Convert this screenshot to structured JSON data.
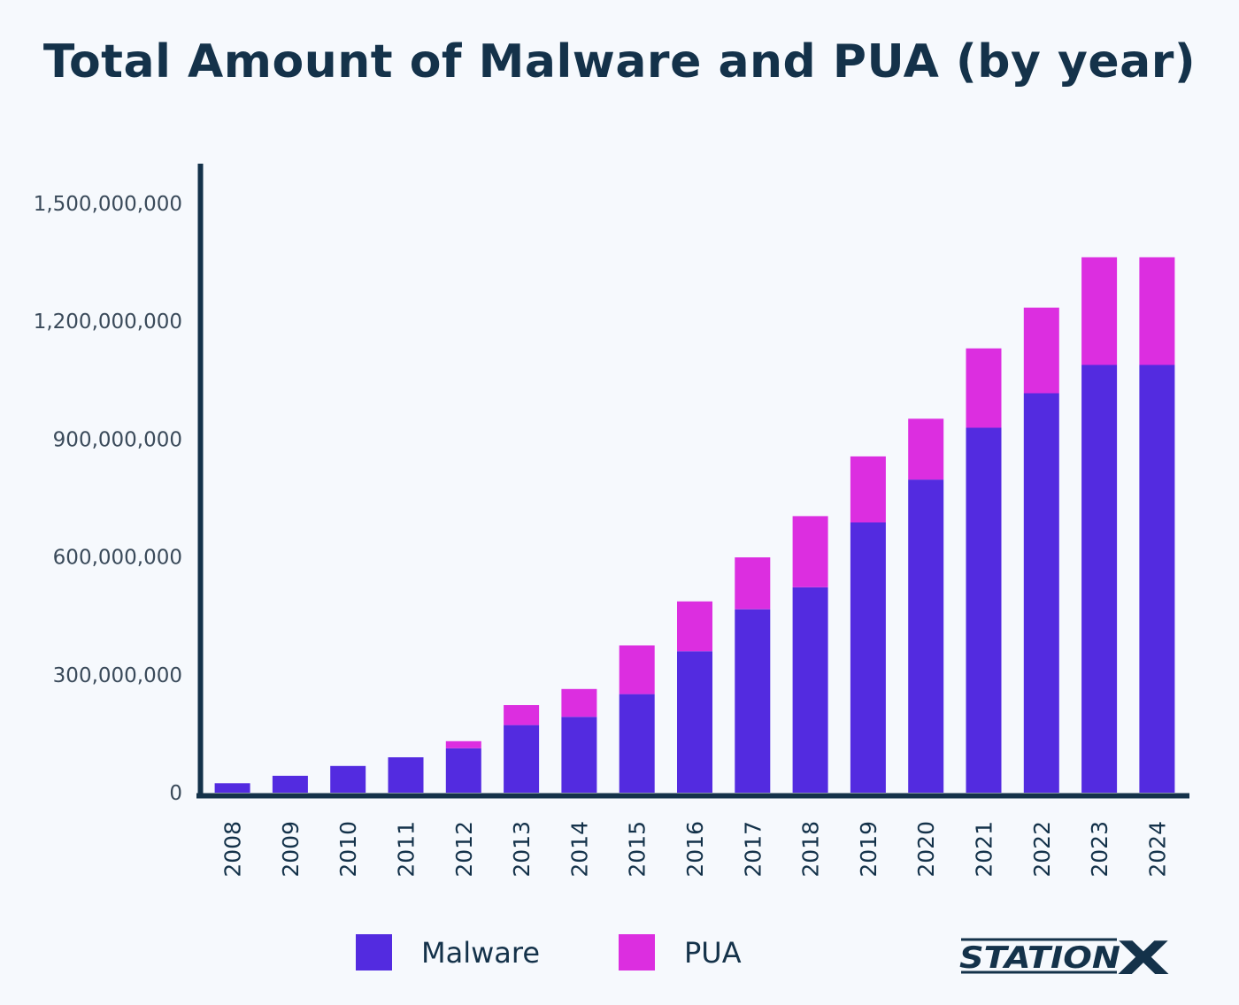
{
  "chart_data": {
    "type": "bar",
    "stacked": true,
    "title": "Total Amount of Malware and PUA (by year)",
    "categories": [
      "2008",
      "2009",
      "2010",
      "2011",
      "2012",
      "2013",
      "2014",
      "2015",
      "2016",
      "2017",
      "2018",
      "2019",
      "2020",
      "2021",
      "2022",
      "2023",
      "2024"
    ],
    "series": [
      {
        "name": "Malware",
        "color": "#532be0",
        "values": [
          24000000,
          43000000,
          68000000,
          90000000,
          113000000,
          172000000,
          193000000,
          251000000,
          360000000,
          467000000,
          523000000,
          688000000,
          797000000,
          929000000,
          1017000000,
          1089000000,
          1089000000
        ]
      },
      {
        "name": "PUA",
        "color": "#dc2ee0",
        "values": [
          0,
          0,
          0,
          0,
          18000000,
          51000000,
          71000000,
          124000000,
          127000000,
          132000000,
          181000000,
          168000000,
          155000000,
          202000000,
          218000000,
          274000000,
          274000000
        ]
      }
    ],
    "yticks": [
      {
        "value": 0,
        "label": "0"
      },
      {
        "value": 300000000,
        "label": "300,000,000"
      },
      {
        "value": 600000000,
        "label": "600,000,000"
      },
      {
        "value": 900000000,
        "label": "900,000,000"
      },
      {
        "value": 1200000000,
        "label": "1,200,000,000"
      },
      {
        "value": 1500000000,
        "label": "1,500,000,000"
      }
    ],
    "ylim": [
      0,
      1600000000
    ],
    "xlabel": "",
    "ylabel": "",
    "grid": false,
    "legend": "bottom-center"
  },
  "brand": {
    "logo_text": "STATION",
    "logo_x": "X"
  }
}
